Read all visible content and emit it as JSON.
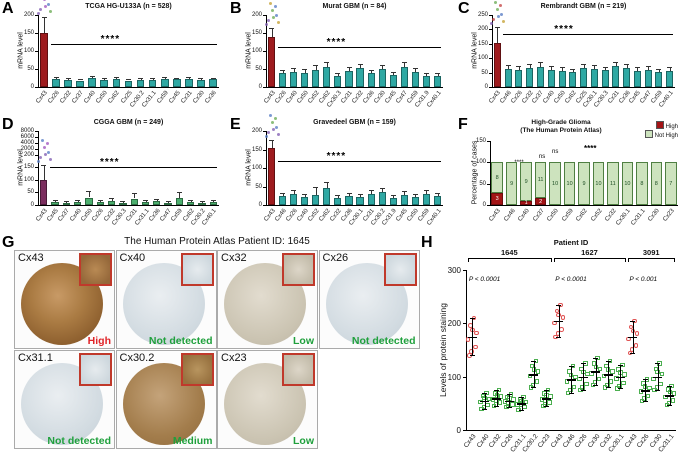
{
  "panels": {
    "A": {
      "letter": "A"
    },
    "B": {
      "letter": "B"
    },
    "C": {
      "letter": "C"
    },
    "D": {
      "letter": "D"
    },
    "E": {
      "letter": "E"
    },
    "F": {
      "letter": "F"
    },
    "G": {
      "letter": "G"
    },
    "H": {
      "letter": "H"
    }
  },
  "ihc": {
    "title": "The Human Protein Atlas Patient ID: 1645",
    "tiles": [
      {
        "gene": "Cx43",
        "status": "High"
      },
      {
        "gene": "Cx40",
        "status": "Not detected"
      },
      {
        "gene": "Cx32",
        "status": "Low"
      },
      {
        "gene": "Cx26",
        "status": "Not detected"
      },
      {
        "gene": "Cx31.1",
        "status": "Not detected"
      },
      {
        "gene": "Cx30.2",
        "status": "Medium"
      },
      {
        "gene": "Cx23",
        "status": "Low"
      }
    ],
    "status_colors": {
      "High": "#e02428",
      "Medium": "#1fa03c",
      "Low": "#1fa03c",
      "Not detected": "#1fa03c"
    }
  },
  "chart_data": [
    {
      "id": "A",
      "type": "bar",
      "title": "TCGA HG-U133A (n = 528)",
      "ylabel": "mRNA level",
      "ylim": [
        0,
        200
      ],
      "yticks": [
        0,
        50,
        100,
        150,
        200
      ],
      "categories": [
        "Cx43",
        "Cx26",
        "Cx32",
        "Cx37",
        "Cx40",
        "Cx50",
        "Cx62",
        "Cx25",
        "Cx30.2",
        "Cx31.1",
        "Cx59",
        "Cx45",
        "Cx31",
        "Cx30",
        "Cx36"
      ],
      "values": [
        150,
        22,
        20,
        18,
        24,
        20,
        22,
        18,
        20,
        19,
        23,
        21,
        22,
        20,
        21
      ],
      "errors": [
        45,
        6,
        5,
        5,
        6,
        5,
        6,
        5,
        5,
        5,
        6,
        5,
        6,
        5,
        5
      ],
      "accent": "#9E1B1E",
      "bar_color": "#2FA8A3",
      "sig": {
        "label": "****",
        "y": 120
      },
      "dot_colors": [
        "#8563b5",
        "#5b7fc7",
        "#a45bc0",
        "#6fae5a"
      ]
    },
    {
      "id": "B",
      "type": "bar",
      "title": "Murat GBM (n = 84)",
      "ylabel": "mRNA level",
      "ylim": [
        0,
        200
      ],
      "yticks": [
        0,
        50,
        100,
        150,
        200
      ],
      "categories": [
        "Cx43",
        "Cx26",
        "Cx40",
        "Cx50",
        "Cx52",
        "Cx62",
        "Cx30.3",
        "Cx31",
        "Cx32",
        "Cx36",
        "Cx30",
        "Cx45",
        "Cx47",
        "Cx59",
        "Cx31.9",
        "Cx40.1"
      ],
      "values": [
        138,
        38,
        42,
        40,
        48,
        55,
        30,
        45,
        52,
        38,
        50,
        33,
        56,
        42,
        30,
        30
      ],
      "errors": [
        25,
        10,
        12,
        10,
        12,
        14,
        8,
        10,
        12,
        10,
        12,
        8,
        14,
        10,
        8,
        8
      ],
      "accent": "#9E1B1E",
      "bar_color": "#2FA8A3",
      "sig": {
        "label": "****",
        "y": 110
      },
      "dot_colors": [
        "#8563b5",
        "#5b7fc7",
        "#6fae5a",
        "#c7a43b"
      ]
    },
    {
      "id": "C",
      "type": "bar",
      "title": "Rembrandt GBM (n = 219)",
      "ylabel": "mRNA level",
      "ylim": [
        0,
        250
      ],
      "yticks": [
        0,
        50,
        100,
        150,
        200,
        250
      ],
      "categories": [
        "Cx43",
        "Cx46",
        "Cx26",
        "Cx32",
        "Cx37",
        "Cx40",
        "Cx50",
        "Cx62",
        "Cx25",
        "Cx30.1",
        "Cx30.3",
        "Cx31",
        "Cx36",
        "Cx45",
        "Cx47",
        "Cx59",
        "Cx40.1"
      ],
      "values": [
        152,
        62,
        58,
        66,
        70,
        60,
        56,
        52,
        66,
        62,
        58,
        72,
        66,
        56,
        60,
        52,
        56
      ],
      "errors": [
        55,
        15,
        14,
        15,
        16,
        14,
        13,
        12,
        15,
        14,
        13,
        16,
        15,
        13,
        14,
        12,
        13
      ],
      "accent": "#9E1B1E",
      "bar_color": "#2FA8A3",
      "sig": {
        "label": "****",
        "y": 185
      },
      "dot_colors": [
        "#c74b4b",
        "#5b7fc7",
        "#6fae5a",
        "#c7a43b",
        "#8563b5"
      ]
    },
    {
      "id": "D",
      "type": "bar",
      "title": "CGGA GBM (n = 249)",
      "ylabel": "mRNA level",
      "ylim": [
        0,
        200
      ],
      "yticks": [
        0,
        50,
        100,
        150,
        200
      ],
      "upper_ticks": [
        2000,
        4000,
        6000,
        8000
      ],
      "scale_frac": 0.68,
      "categories": [
        "Cx43",
        "Cx45",
        "Cx37",
        "Cx40",
        "Cx50",
        "Cx26",
        "Cx32",
        "Cx30.3",
        "Cx31",
        "Cx31.1",
        "Cx36",
        "Cx47",
        "Cx59",
        "Cx62",
        "Cx30.2",
        "Cx40.1"
      ],
      "values": [
        100,
        12,
        10,
        14,
        30,
        12,
        18,
        10,
        26,
        12,
        15,
        10,
        28,
        12,
        10,
        14
      ],
      "errors": [
        60,
        8,
        6,
        8,
        25,
        8,
        10,
        6,
        20,
        8,
        9,
        6,
        22,
        8,
        6,
        8
      ],
      "accent": "#7B2D5E",
      "bar_color": "#4CAF6E",
      "sig": {
        "label": "****",
        "y": 150
      },
      "dot_colors": [
        "#8563b5",
        "#5b7fc7",
        "#a45bc0"
      ]
    },
    {
      "id": "E",
      "type": "bar",
      "title": "Gravedeel GBM (n = 159)",
      "ylabel": "mRNA level",
      "ylim": [
        0,
        200
      ],
      "yticks": [
        0,
        50,
        100,
        150,
        200
      ],
      "categories": [
        "Cx43",
        "Cx46",
        "Cx26",
        "Cx40",
        "Cx52",
        "Cx62",
        "Cx32",
        "Cx36",
        "Cx30.1",
        "Cx31",
        "Cx30.2",
        "Cx31.9",
        "Cx45",
        "Cx50",
        "Cx59",
        "Cx40.1"
      ],
      "values": [
        155,
        25,
        30,
        22,
        28,
        45,
        20,
        25,
        22,
        30,
        35,
        20,
        28,
        22,
        30,
        25
      ],
      "errors": [
        20,
        8,
        10,
        7,
        22,
        18,
        6,
        8,
        7,
        10,
        12,
        6,
        9,
        7,
        10,
        8
      ],
      "accent": "#9E1B1E",
      "bar_color": "#2FA8A3",
      "sig": {
        "label": "****",
        "y": 120
      },
      "dot_colors": [
        "#8563b5",
        "#5b7fc7",
        "#6fae5a"
      ]
    },
    {
      "id": "F",
      "type": "stacked",
      "title_lines": [
        "High-Grade Glioma",
        "(The Human Protein Atlas)"
      ],
      "ylabel": "Percentage of cases",
      "ylim": [
        0,
        150
      ],
      "yticks": [
        0,
        50,
        100,
        150
      ],
      "legend": [
        {
          "label": "High",
          "color": "#A31416"
        },
        {
          "label": "Not High",
          "color": "#CDE3BE"
        }
      ],
      "categories": [
        "Cx43",
        "Cx46",
        "Cx40",
        "Cx37",
        "Cx50",
        "Cx59",
        "Cx62",
        "Cx52",
        "Cx32",
        "Cx30.1",
        "Cx31.1",
        "Cx30",
        "Cx23"
      ],
      "series": [
        {
          "name": "High",
          "color": "#A31416",
          "values": [
            3,
            0,
            1,
            2,
            0,
            0,
            0,
            0,
            0,
            0,
            0,
            0,
            0
          ]
        },
        {
          "name": "Not High",
          "color": "#CDE3BE",
          "values": [
            8,
            9,
            9,
            11,
            10,
            10,
            9,
            10,
            11,
            10,
            8,
            8,
            7
          ]
        }
      ],
      "annotations": [
        {
          "text": "****",
          "fx": 0.5,
          "fy": 0.04,
          "bold": true
        },
        {
          "text": "****",
          "fx": 0.13,
          "fy": 0.3,
          "bold": false
        },
        {
          "text": "ns",
          "fx": 0.26,
          "fy": 0.2,
          "bold": false
        },
        {
          "text": "ns",
          "fx": 0.33,
          "fy": 0.13,
          "bold": false
        }
      ]
    },
    {
      "id": "H",
      "type": "scatter",
      "header": "Patient ID",
      "ylabel": "Levels of protein staining",
      "ylim": [
        0,
        300
      ],
      "yticks": [
        0,
        100,
        200,
        300
      ],
      "groups": [
        {
          "id": "1645",
          "p_label": "P < 0.0001",
          "start": 0,
          "end": 6
        },
        {
          "id": "1627",
          "p_label": "P < 0.0001",
          "start": 7,
          "end": 12
        },
        {
          "id": "3091",
          "p_label": "P < 0.001",
          "start": 13,
          "end": 16
        }
      ],
      "points": [
        {
          "gene": "Cx43",
          "mean": 175,
          "sd": 35,
          "marker": "circle",
          "color": "#E05252"
        },
        {
          "gene": "Cx40",
          "mean": 55,
          "sd": 15,
          "marker": "square",
          "color": "#4CAF50"
        },
        {
          "gene": "Cx32",
          "mean": 60,
          "sd": 15,
          "marker": "square",
          "color": "#4CAF50"
        },
        {
          "gene": "Cx26",
          "mean": 55,
          "sd": 12,
          "marker": "square",
          "color": "#4CAF50"
        },
        {
          "gene": "Cx31.1",
          "mean": 50,
          "sd": 12,
          "marker": "square",
          "color": "#4CAF50"
        },
        {
          "gene": "Cx30.2",
          "mean": 105,
          "sd": 25,
          "marker": "square",
          "color": "#4CAF50"
        },
        {
          "gene": "Cx23",
          "mean": 60,
          "sd": 15,
          "marker": "square",
          "color": "#4CAF50"
        },
        {
          "gene": "Cx43",
          "mean": 205,
          "sd": 30,
          "marker": "circle",
          "color": "#E05252"
        },
        {
          "gene": "Cx46",
          "mean": 95,
          "sd": 25,
          "marker": "square",
          "color": "#4CAF50"
        },
        {
          "gene": "Cx26",
          "mean": 100,
          "sd": 25,
          "marker": "square",
          "color": "#4CAF50"
        },
        {
          "gene": "Cx30",
          "mean": 110,
          "sd": 25,
          "marker": "square",
          "color": "#4CAF50"
        },
        {
          "gene": "Cx32",
          "mean": 105,
          "sd": 25,
          "marker": "square",
          "color": "#4CAF50"
        },
        {
          "gene": "Cx30.1",
          "mean": 100,
          "sd": 22,
          "marker": "square",
          "color": "#4CAF50"
        },
        {
          "gene": "Cx43",
          "mean": 175,
          "sd": 30,
          "marker": "circle",
          "color": "#E05252"
        },
        {
          "gene": "Cx26",
          "mean": 75,
          "sd": 20,
          "marker": "square",
          "color": "#4CAF50"
        },
        {
          "gene": "Cx30",
          "mean": 100,
          "sd": 25,
          "marker": "square",
          "color": "#4CAF50"
        },
        {
          "gene": "Cx31.1",
          "mean": 65,
          "sd": 18,
          "marker": "square",
          "color": "#4CAF50"
        }
      ]
    }
  ]
}
